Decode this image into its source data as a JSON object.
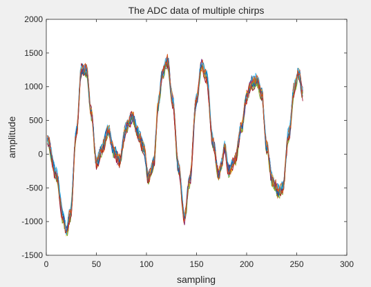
{
  "figure": {
    "background": "#f0f0f0",
    "axes_background": "#ffffff"
  },
  "chart_data": {
    "type": "line",
    "title": "The ADC data of multiple chirps",
    "xlabel": "sampling",
    "ylabel": "amplitude",
    "xlim": [
      0,
      300
    ],
    "ylim": [
      -1500,
      2000
    ],
    "xticks": [
      0,
      50,
      100,
      150,
      200,
      250,
      300
    ],
    "yticks": [
      -1500,
      -1000,
      -500,
      0,
      500,
      1000,
      1500,
      2000
    ],
    "grid": false,
    "legend": "none",
    "series_count": 16,
    "series_colors": [
      "#0072BD",
      "#D95319",
      "#EDB120",
      "#7E2F8E",
      "#77AC30",
      "#4DBEEE",
      "#A2142F"
    ],
    "x": [
      1,
      10,
      17,
      20,
      24,
      30,
      35,
      40,
      45,
      50,
      55,
      62,
      67,
      73,
      80,
      86,
      92,
      97,
      102,
      107,
      112,
      116,
      121,
      126,
      132,
      138,
      143,
      150,
      155,
      160,
      166,
      172,
      175,
      178,
      182,
      188,
      195,
      200,
      205,
      210,
      215,
      220,
      226,
      232,
      236,
      242,
      248,
      252,
      256
    ],
    "values": [
      200,
      -300,
      -950,
      -1150,
      -900,
      300,
      1250,
      1250,
      600,
      -150,
      50,
      350,
      50,
      -100,
      400,
      550,
      300,
      100,
      -350,
      -150,
      750,
      1200,
      1380,
      800,
      -200,
      -950,
      -400,
      800,
      1320,
      1150,
      200,
      -300,
      -150,
      100,
      -250,
      -100,
      400,
      850,
      1050,
      1100,
      900,
      100,
      -400,
      -550,
      -500,
      300,
      1000,
      1200,
      900
    ]
  }
}
